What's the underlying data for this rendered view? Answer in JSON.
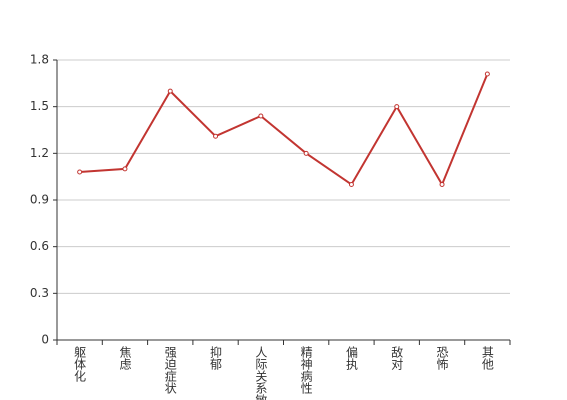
{
  "chart_data": {
    "type": "line",
    "categories": [
      "躯体化",
      "焦虑",
      "强迫症状",
      "抑郁",
      "人际关系敏感",
      "精神病性",
      "偏执",
      "敌对",
      "恐怖",
      "其他"
    ],
    "series": [
      {
        "color": "#c23531",
        "values": [
          1.08,
          1.1,
          1.6,
          1.31,
          1.44,
          1.2,
          1.0,
          1.5,
          1.0,
          1.71
        ]
      }
    ],
    "ylim": [
      0,
      1.8
    ],
    "yticks": [
      0,
      0.3,
      0.6,
      0.9,
      1.2,
      1.5,
      1.8
    ],
    "grid": true
  }
}
